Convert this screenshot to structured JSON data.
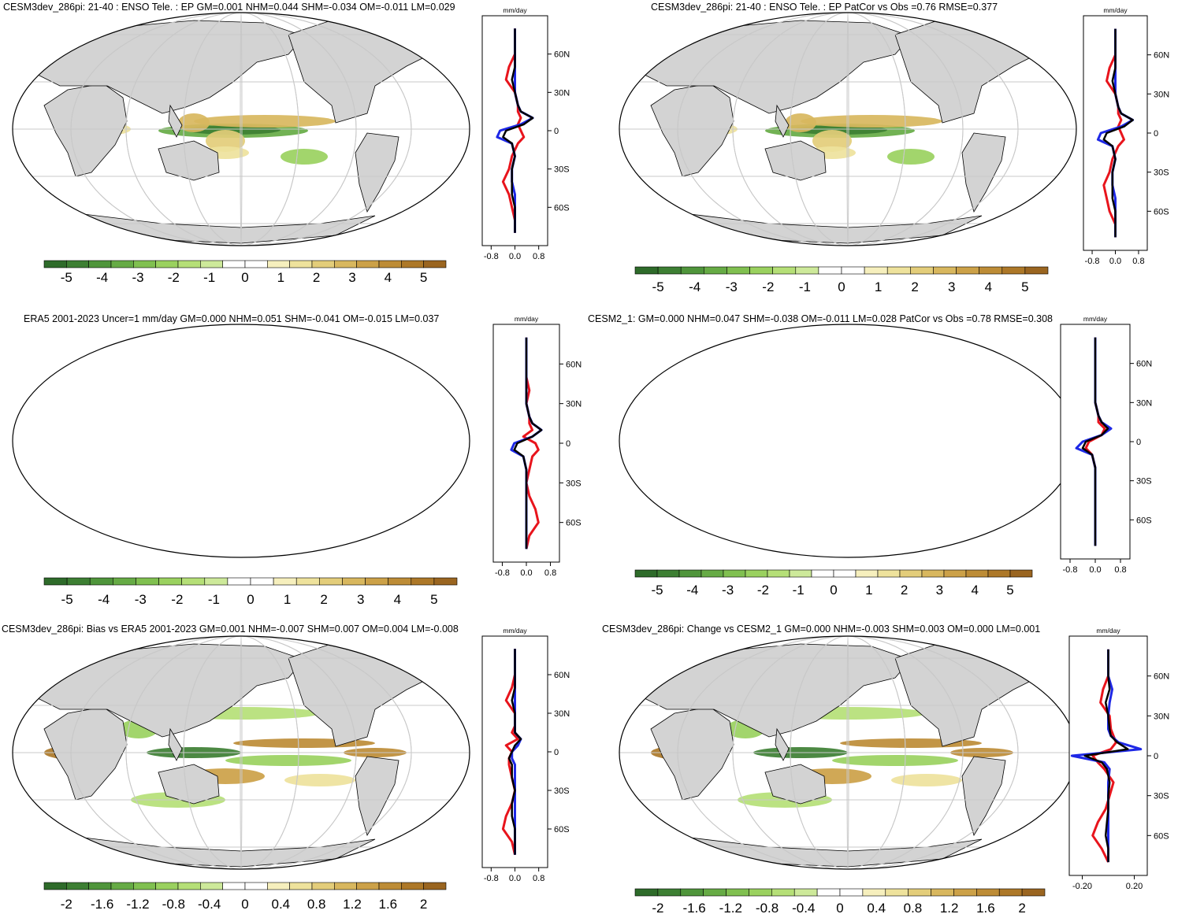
{
  "figure": {
    "profile_unit": "mm/day",
    "lat_labels": [
      "60N",
      "30N",
      "0",
      "30S",
      "60S"
    ],
    "colors": {
      "land": "#d3d3d3",
      "grid": "#c8c8c8",
      "profile_red": "#e8141c",
      "profile_blue": "#1e28e6",
      "profile_black": "#000000",
      "palette": [
        "#2e6b2a",
        "#3d7f33",
        "#4f953b",
        "#66ab45",
        "#80c050",
        "#9ad15f",
        "#b5df77",
        "#cde99a",
        "#ffffff",
        "#ffffff",
        "#f6efbd",
        "#eee29c",
        "#e3cd7a",
        "#d8b75e",
        "#cca148",
        "#bd8c36",
        "#ad7828",
        "#9a6520"
      ]
    }
  },
  "chart_data": [
    {
      "type": "heatmap",
      "panel": "top-left",
      "title": "CESM3dev_286pi: 21-40 : ENSO Tele. : EP GM=0.001 NHM=0.044 SHM=-0.034 OM=-0.011 LM=0.029",
      "colorbar_labels": [
        "-5",
        "-4",
        "-3",
        "-2",
        "-1",
        "0",
        "1",
        "2",
        "3",
        "4",
        "5"
      ],
      "profile_ticks": [
        "-0.8",
        "0.0",
        "0.8"
      ],
      "profile_range": [
        -1.1,
        1.1
      ],
      "lat": [
        -80,
        -70,
        -60,
        -50,
        -40,
        -30,
        -20,
        -10,
        -5,
        0,
        5,
        10,
        15,
        20,
        30,
        40,
        50,
        60,
        70,
        80
      ],
      "profiles": {
        "red": [
          0.0,
          0.0,
          -0.1,
          -0.2,
          -0.4,
          -0.2,
          -0.1,
          0.1,
          0.3,
          0.2,
          0.1,
          0.2,
          0.1,
          0.1,
          0.0,
          -0.3,
          -0.2,
          0.0,
          0.0,
          0.0
        ],
        "blue": [
          0.0,
          0.0,
          0.0,
          0.0,
          -0.1,
          -0.1,
          0.0,
          -0.1,
          -0.6,
          -0.5,
          0.2,
          0.6,
          0.2,
          0.1,
          0.0,
          0.0,
          0.0,
          0.0,
          0.0,
          0.0
        ],
        "black": [
          0.0,
          0.0,
          0.0,
          -0.1,
          -0.1,
          -0.1,
          0.0,
          -0.1,
          -0.4,
          -0.3,
          0.3,
          0.6,
          0.2,
          0.1,
          0.0,
          -0.1,
          0.0,
          0.0,
          0.0,
          0.0
        ]
      }
    },
    {
      "type": "heatmap",
      "panel": "top-right",
      "title": "CESM3dev_286pi: 21-40 : ENSO Tele. : EP PatCor vs Obs =0.76 RMSE=0.377",
      "colorbar_labels": [
        "-5",
        "-4",
        "-3",
        "-2",
        "-1",
        "0",
        "1",
        "2",
        "3",
        "4",
        "5"
      ],
      "profile_ticks": [
        "-0.8",
        "0.0",
        "0.8"
      ],
      "profile_range": [
        -1.1,
        1.1
      ],
      "lat": [
        -80,
        -70,
        -60,
        -50,
        -40,
        -30,
        -20,
        -10,
        -5,
        0,
        5,
        10,
        15,
        20,
        30,
        40,
        50,
        60,
        70,
        80
      ],
      "profiles": {
        "red": [
          0.0,
          0.0,
          -0.2,
          -0.3,
          -0.4,
          -0.2,
          -0.1,
          0.1,
          0.3,
          0.2,
          0.1,
          0.2,
          0.1,
          0.1,
          0.0,
          -0.3,
          -0.2,
          0.0,
          0.0,
          0.0
        ],
        "blue": [
          0.0,
          0.0,
          0.0,
          0.0,
          -0.1,
          -0.1,
          0.0,
          -0.1,
          -0.6,
          -0.5,
          0.2,
          0.6,
          0.2,
          0.1,
          0.0,
          0.0,
          0.0,
          0.0,
          0.0,
          0.0
        ],
        "black": [
          0.0,
          0.0,
          0.0,
          -0.1,
          -0.1,
          -0.1,
          0.0,
          -0.1,
          -0.4,
          -0.3,
          0.3,
          0.6,
          0.2,
          0.1,
          0.0,
          -0.1,
          0.0,
          0.0,
          0.0,
          0.0
        ]
      }
    },
    {
      "type": "heatmap",
      "panel": "middle-left",
      "title": "ERA5 2001-2023 Uncer=1 mm/day GM=0.000 NHM=0.051 SHM=-0.041 OM=-0.015 LM=0.037",
      "colorbar_labels": [
        "-5",
        "-4",
        "-3",
        "-2",
        "-1",
        "0",
        "1",
        "2",
        "3",
        "4",
        "5"
      ],
      "profile_ticks": [
        "-0.8",
        "0.0",
        "0.8"
      ],
      "profile_range": [
        -1.1,
        1.1
      ],
      "lat": [
        -80,
        -70,
        -60,
        -50,
        -40,
        -30,
        -20,
        -10,
        -5,
        0,
        5,
        10,
        15,
        20,
        30,
        40,
        50,
        60,
        70,
        80
      ],
      "profiles": {
        "red": [
          0.0,
          0.1,
          0.4,
          0.3,
          0.1,
          0.0,
          0.1,
          0.2,
          0.4,
          0.3,
          -0.1,
          0.2,
          0.1,
          0.1,
          0.0,
          0.1,
          0.0,
          0.0,
          0.0,
          0.0
        ],
        "blue": [
          0.0,
          0.0,
          0.0,
          0.0,
          0.0,
          0.0,
          0.0,
          -0.1,
          -0.5,
          -0.4,
          0.2,
          0.5,
          0.2,
          0.1,
          0.0,
          0.0,
          0.0,
          0.0,
          0.0,
          0.0
        ],
        "black": [
          0.0,
          0.0,
          0.0,
          0.0,
          0.0,
          0.0,
          0.0,
          -0.1,
          -0.4,
          -0.3,
          0.2,
          0.5,
          0.2,
          0.1,
          0.0,
          0.0,
          0.0,
          0.0,
          0.0,
          0.0
        ]
      }
    },
    {
      "type": "heatmap",
      "panel": "middle-right",
      "title": "CESM2_1: GM=0.000 NHM=0.047 SHM=-0.038 OM=-0.011 LM=0.028 PatCor vs Obs =0.78 RMSE=0.308",
      "colorbar_labels": [
        "-5",
        "-4",
        "-3",
        "-2",
        "-1",
        "0",
        "1",
        "2",
        "3",
        "4",
        "5"
      ],
      "profile_ticks": [
        "-0.8",
        "0.0",
        "0.8"
      ],
      "profile_range": [
        -1.1,
        1.1
      ],
      "lat": [
        -80,
        -70,
        -60,
        -50,
        -40,
        -30,
        -20,
        -10,
        -5,
        0,
        5,
        10,
        15,
        20,
        30,
        40,
        50,
        60,
        70,
        80
      ],
      "profiles": {
        "red": [
          0.0,
          0.0,
          0.0,
          0.0,
          0.0,
          0.0,
          0.0,
          -0.1,
          -0.3,
          -0.2,
          0.2,
          0.3,
          0.1,
          0.1,
          0.0,
          0.0,
          0.0,
          0.0,
          0.0,
          0.0
        ],
        "blue": [
          0.0,
          0.0,
          0.0,
          0.0,
          0.0,
          0.0,
          0.0,
          -0.1,
          -0.6,
          -0.4,
          0.2,
          0.5,
          0.2,
          0.1,
          0.0,
          0.0,
          0.0,
          0.0,
          0.0,
          0.0
        ],
        "black": [
          0.0,
          0.0,
          0.0,
          0.0,
          0.0,
          0.0,
          0.0,
          -0.1,
          -0.4,
          -0.3,
          0.2,
          0.4,
          0.2,
          0.1,
          0.0,
          0.0,
          0.0,
          0.0,
          0.0,
          0.0
        ]
      }
    },
    {
      "type": "heatmap",
      "panel": "bottom-left",
      "title": "CESM3dev_286pi: Bias vs ERA5 2001-2023 GM=0.001 NHM=-0.007 SHM=0.007 OM=0.004 LM=-0.008",
      "colorbar_labels": [
        "-2",
        "-1.6",
        "-1.2",
        "-0.8",
        "-0.4",
        "0",
        "0.4",
        "0.8",
        "1.2",
        "1.6",
        "2"
      ],
      "profile_ticks": [
        "-0.8",
        "0.0",
        "0.8"
      ],
      "profile_range": [
        -1.1,
        1.1
      ],
      "lat": [
        -80,
        -70,
        -60,
        -50,
        -40,
        -30,
        -20,
        -10,
        -5,
        0,
        5,
        10,
        15,
        20,
        30,
        40,
        50,
        60,
        70,
        80
      ],
      "profiles": {
        "red": [
          0.0,
          -0.1,
          -0.4,
          -0.3,
          -0.1,
          0.0,
          -0.1,
          -0.2,
          -0.2,
          -0.1,
          -0.3,
          0.1,
          -0.1,
          0.0,
          0.0,
          -0.3,
          -0.1,
          0.0,
          0.0,
          0.0
        ],
        "blue": [
          0.0,
          0.0,
          0.0,
          0.0,
          0.0,
          0.0,
          0.0,
          0.0,
          -0.1,
          -0.1,
          0.1,
          0.2,
          0.0,
          0.0,
          0.0,
          0.0,
          0.0,
          0.0,
          0.0,
          0.0
        ],
        "black": [
          0.0,
          0.0,
          0.0,
          -0.1,
          -0.1,
          0.0,
          -0.1,
          -0.1,
          -0.2,
          -0.1,
          0.0,
          0.2,
          0.0,
          0.0,
          0.0,
          -0.1,
          0.0,
          0.0,
          0.0,
          0.0
        ]
      }
    },
    {
      "type": "heatmap",
      "panel": "bottom-right",
      "title": "CESM3dev_286pi: Change vs CESM2_1 GM=0.000 NHM=-0.003 SHM=0.003 OM=0.000 LM=0.001",
      "colorbar_labels": [
        "-2",
        "-1.6",
        "-1.2",
        "-0.8",
        "-0.4",
        "0",
        "0.4",
        "0.8",
        "1.2",
        "1.6",
        "2"
      ],
      "profile_ticks": [
        "-0.20",
        "0.20"
      ],
      "profile_range": [
        -0.3,
        0.3
      ],
      "lat": [
        -80,
        -70,
        -60,
        -50,
        -40,
        -30,
        -20,
        -10,
        -5,
        0,
        5,
        10,
        15,
        20,
        30,
        40,
        50,
        60,
        70,
        80
      ],
      "profiles": {
        "red": [
          0.0,
          -0.05,
          -0.12,
          -0.08,
          -0.02,
          0.01,
          0.04,
          -0.03,
          -0.08,
          -0.12,
          0.02,
          0.06,
          0.04,
          0.02,
          0.01,
          -0.06,
          -0.04,
          0.0,
          0.0,
          0.0
        ],
        "blue": [
          0.0,
          0.0,
          0.0,
          0.0,
          0.0,
          0.0,
          0.0,
          0.01,
          -0.03,
          -0.28,
          0.25,
          0.08,
          0.02,
          0.0,
          0.0,
          0.01,
          0.03,
          0.0,
          0.0,
          0.0
        ],
        "black": [
          0.0,
          0.0,
          -0.02,
          -0.01,
          0.0,
          0.0,
          0.01,
          -0.01,
          -0.05,
          -0.18,
          0.15,
          0.07,
          0.02,
          0.01,
          0.0,
          -0.02,
          0.01,
          0.0,
          0.0,
          0.0
        ]
      }
    }
  ]
}
